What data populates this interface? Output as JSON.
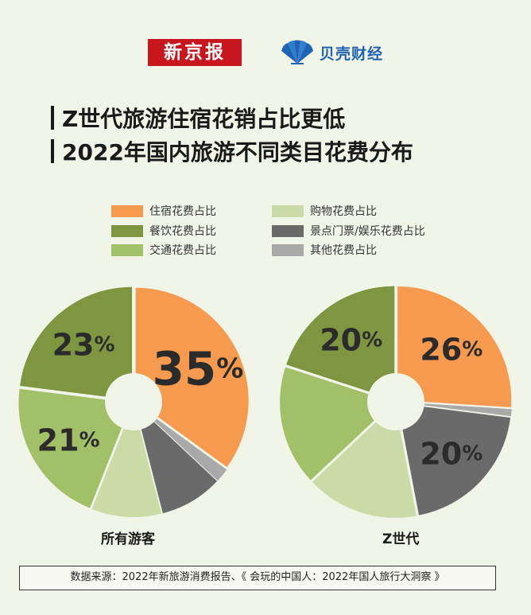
{
  "header": {
    "logo_xinjingbao": "新京报",
    "logo_beike": "贝壳财经",
    "title_line1": "Z世代旅游住宿花销占比更低",
    "title_line2": "2022年国内旅游不同类目花费分布"
  },
  "colors": {
    "住宿": "#f59a4e",
    "餐饮": "#7d963f",
    "交通": "#a2c067",
    "购物": "#cbdba7",
    "景点门票/娱乐": "#6a6a6a",
    "其他": "#a9a9a9"
  },
  "legend": [
    {
      "label": "住宿花费占比",
      "color": "#f59a4e"
    },
    {
      "label": "餐饮花费占比",
      "color": "#7d963f"
    },
    {
      "label": "交通花费占比",
      "color": "#a2c067"
    },
    {
      "label": "购物花费占比",
      "color": "#cbdba7"
    },
    {
      "label": "景点门票/娱乐花费占比",
      "color": "#6a6a6a"
    },
    {
      "label": "其他花费占比",
      "color": "#a9a9a9"
    }
  ],
  "chart_data": [
    {
      "type": "pie",
      "title": "所有游客",
      "categories": [
        "住宿花费占比",
        "其他花费占比",
        "景点门票/娱乐花费占比",
        "购物花费占比",
        "交通花费占比",
        "餐饮花费占比"
      ],
      "values": [
        35,
        2,
        9,
        10,
        21,
        23
      ],
      "labels": [
        {
          "category": "住宿花费占比",
          "text": "35"
        },
        {
          "category": "交通花费占比",
          "text": "21"
        },
        {
          "category": "餐饮花费占比",
          "text": "23"
        }
      ]
    },
    {
      "type": "pie",
      "title": "Z世代",
      "categories": [
        "住宿花费占比",
        "其他花费占比",
        "景点门票/娱乐花费占比",
        "购物花费占比",
        "交通花费占比",
        "餐饮花费占比"
      ],
      "values": [
        26,
        1,
        20,
        16,
        17,
        20
      ],
      "labels": [
        {
          "category": "住宿花费占比",
          "text": "26"
        },
        {
          "category": "景点门票/娱乐花费占比",
          "text": "20"
        },
        {
          "category": "餐饮花费占比",
          "text": "20"
        }
      ]
    }
  ],
  "percent_sign": "%",
  "source": "数据来源：2022年新旅游消费报告、《 会玩的中国人：2022年国人旅行大洞察 》"
}
